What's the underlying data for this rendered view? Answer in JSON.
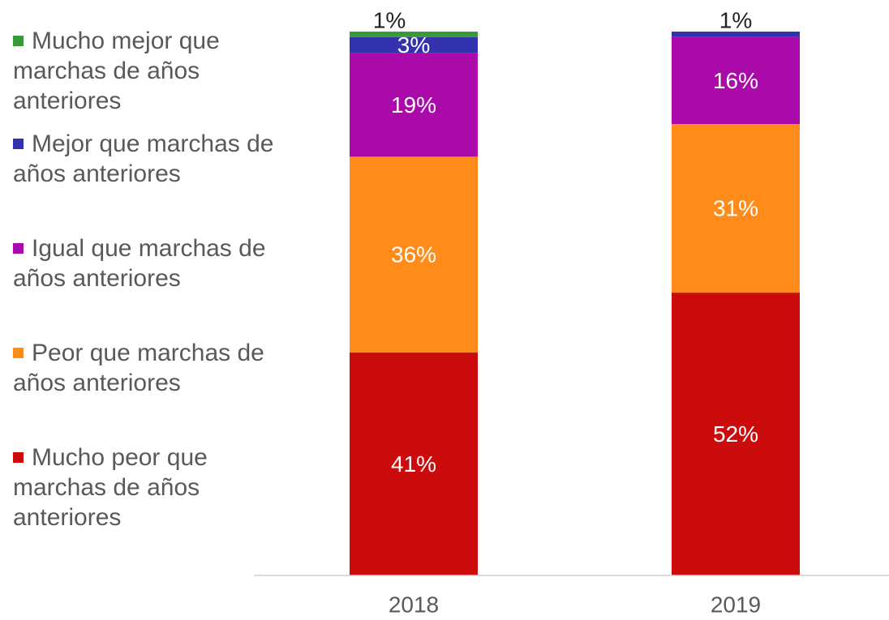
{
  "chart_data": {
    "type": "stacked_bar",
    "categories": [
      "2018",
      "2019"
    ],
    "ylim": [
      0,
      100
    ],
    "series": [
      {
        "name": "Mucho peor que marchas de años anteriores",
        "color": "#cc0c0c",
        "values": [
          41,
          52
        ],
        "value_labels": [
          "41%",
          "52%"
        ]
      },
      {
        "name": "Peor que marchas de años anteriores",
        "color": "#ff8c1a",
        "values": [
          36,
          31
        ],
        "value_labels": [
          "36%",
          "31%"
        ]
      },
      {
        "name": "Igual que marchas de años anteriores",
        "color": "#aa0aaa",
        "values": [
          19,
          16
        ],
        "value_labels": [
          "19%",
          "16%"
        ]
      },
      {
        "name": "Mejor que marchas de años anteriores",
        "color": "#3333b0",
        "values": [
          3,
          1
        ],
        "value_labels": [
          "3%",
          "1%"
        ]
      },
      {
        "name": "Mucho mejor que marchas de años anteriores",
        "color": "#3a9a3a",
        "values": [
          1,
          null
        ],
        "value_labels": [
          "1%",
          null
        ]
      }
    ]
  }
}
